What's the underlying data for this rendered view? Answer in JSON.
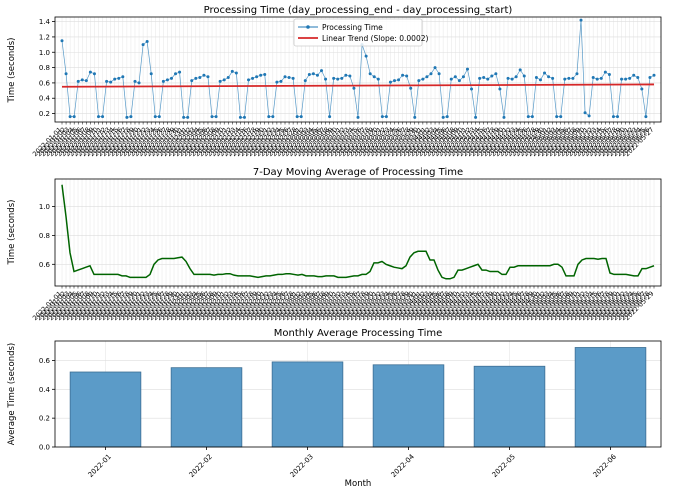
{
  "chart_data": [
    {
      "type": "line",
      "title": "Processing Time (day_processing_end - day_processing_start)",
      "xlabel": "",
      "ylabel": "Time (seconds)",
      "ylim": [
        0.09,
        1.46
      ],
      "yticks": [
        0.2,
        0.4,
        0.6,
        0.8,
        1.0,
        1.2,
        1.4
      ],
      "x_start": "2022-01-01",
      "x_end": "2022-06-30",
      "grid": true,
      "legend_position": "top-center",
      "colors": {
        "series": "#1f77b4",
        "trend": "#d62728"
      },
      "series": [
        {
          "name": "Processing Time",
          "values": [
            1.15,
            0.72,
            0.16,
            0.16,
            0.62,
            0.64,
            0.63,
            0.74,
            0.72,
            0.16,
            0.16,
            0.62,
            0.61,
            0.65,
            0.66,
            0.68,
            0.15,
            0.16,
            0.62,
            0.6,
            1.1,
            1.14,
            0.72,
            0.16,
            0.16,
            0.62,
            0.64,
            0.66,
            0.72,
            0.74,
            0.15,
            0.15,
            0.63,
            0.66,
            0.67,
            0.7,
            0.68,
            0.16,
            0.16,
            0.62,
            0.64,
            0.67,
            0.75,
            0.73,
            0.15,
            0.15,
            0.64,
            0.66,
            0.68,
            0.7,
            0.71,
            0.16,
            0.16,
            0.61,
            0.62,
            0.68,
            0.67,
            0.66,
            0.16,
            0.16,
            0.63,
            0.71,
            0.72,
            0.7,
            0.76,
            0.65,
            0.16,
            0.66,
            0.65,
            0.66,
            0.7,
            0.69,
            0.53,
            0.15,
            1.1,
            0.95,
            0.72,
            0.68,
            0.65,
            0.16,
            0.16,
            0.61,
            0.63,
            0.64,
            0.7,
            0.69,
            0.53,
            0.15,
            0.63,
            0.65,
            0.68,
            0.72,
            0.8,
            0.72,
            0.15,
            0.16,
            0.65,
            0.68,
            0.63,
            0.68,
            0.78,
            0.52,
            0.15,
            0.66,
            0.67,
            0.65,
            0.69,
            0.72,
            0.52,
            0.15,
            0.66,
            0.65,
            0.68,
            0.77,
            0.69,
            0.16,
            0.16,
            0.67,
            0.64,
            0.73,
            0.68,
            0.66,
            0.16,
            0.16,
            0.65,
            0.66,
            0.66,
            0.72,
            1.42,
            0.21,
            0.17,
            0.67,
            0.65,
            0.66,
            0.74,
            0.71,
            0.16,
            0.16,
            0.65,
            0.65,
            0.66,
            0.7,
            0.67,
            0.52,
            0.16,
            0.67,
            0.7
          ]
        },
        {
          "name": "Linear Trend (Slope: 0.0002)",
          "start": 0.55,
          "end": 0.58
        }
      ]
    },
    {
      "type": "line",
      "title": "7-Day Moving Average of Processing Time",
      "xlabel": "",
      "ylabel": "Time (seconds)",
      "ylim": [
        0.45,
        1.19
      ],
      "yticks": [
        0.6,
        0.8,
        1.0
      ],
      "grid": true,
      "colors": {
        "series": "#006400"
      },
      "series": [
        {
          "name": "",
          "values": [
            1.15,
            0.93,
            0.68,
            0.55,
            0.56,
            0.57,
            0.58,
            0.59,
            0.53,
            0.53,
            0.53,
            0.53,
            0.53,
            0.53,
            0.53,
            0.52,
            0.52,
            0.51,
            0.51,
            0.51,
            0.51,
            0.51,
            0.53,
            0.6,
            0.63,
            0.64,
            0.64,
            0.64,
            0.64,
            0.645,
            0.65,
            0.62,
            0.57,
            0.53,
            0.53,
            0.53,
            0.53,
            0.53,
            0.525,
            0.53,
            0.53,
            0.535,
            0.535,
            0.525,
            0.52,
            0.52,
            0.52,
            0.52,
            0.515,
            0.51,
            0.515,
            0.52,
            0.52,
            0.525,
            0.53,
            0.53,
            0.535,
            0.535,
            0.53,
            0.525,
            0.53,
            0.52,
            0.52,
            0.52,
            0.515,
            0.515,
            0.52,
            0.52,
            0.52,
            0.51,
            0.51,
            0.51,
            0.515,
            0.52,
            0.52,
            0.53,
            0.53,
            0.55,
            0.61,
            0.61,
            0.62,
            0.6,
            0.59,
            0.58,
            0.575,
            0.57,
            0.59,
            0.65,
            0.68,
            0.69,
            0.69,
            0.69,
            0.63,
            0.63,
            0.56,
            0.51,
            0.5,
            0.5,
            0.51,
            0.56,
            0.56,
            0.57,
            0.58,
            0.59,
            0.6,
            0.56,
            0.56,
            0.55,
            0.55,
            0.55,
            0.53,
            0.53,
            0.58,
            0.58,
            0.59,
            0.59,
            0.59,
            0.59,
            0.59,
            0.59,
            0.59,
            0.59,
            0.59,
            0.6,
            0.6,
            0.58,
            0.52,
            0.52,
            0.52,
            0.6,
            0.63,
            0.64,
            0.64,
            0.64,
            0.635,
            0.64,
            0.64,
            0.54,
            0.53,
            0.53,
            0.53,
            0.53,
            0.525,
            0.52,
            0.52,
            0.57,
            0.57,
            0.58,
            0.59
          ]
        }
      ]
    },
    {
      "type": "bar",
      "title": "Monthly Average Processing Time",
      "xlabel": "Month",
      "ylabel": "Average Time (seconds)",
      "categories": [
        "2022-01",
        "2022-02",
        "2022-03",
        "2022-04",
        "2022-05",
        "2022-06"
      ],
      "values": [
        0.52,
        0.55,
        0.59,
        0.57,
        0.56,
        0.69
      ],
      "ylim": [
        0,
        0.735
      ],
      "yticks": [
        0.0,
        0.2,
        0.4,
        0.6
      ],
      "grid": true,
      "colors": {
        "bar": "#5b9bc8",
        "edge": "#3d6f94"
      }
    }
  ]
}
